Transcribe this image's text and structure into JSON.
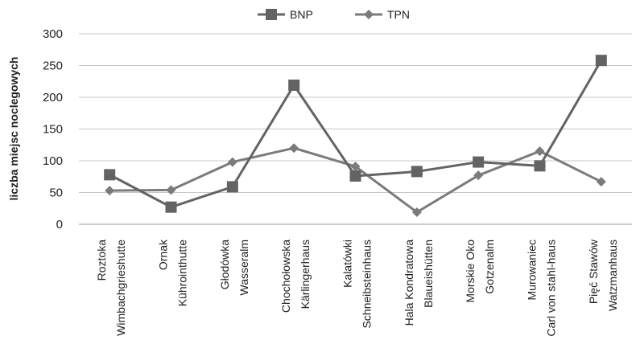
{
  "chart_data": {
    "type": "line",
    "title": "",
    "xlabel": "",
    "ylabel": "liczba miejsc noclegowych",
    "ylim": [
      0,
      300
    ],
    "yticks": [
      0,
      50,
      100,
      150,
      200,
      250,
      300
    ],
    "grid": true,
    "legend_position": "top-center",
    "categories": [
      [
        "Roztoka",
        "Wimbachgrieshutte"
      ],
      [
        "Ornak",
        "Kührointhutte"
      ],
      [
        "Głodówka",
        "Wasseralm"
      ],
      [
        "Chochołowska",
        "Kärlingerhaus"
      ],
      [
        "Kalatówki",
        "Schneibsteinhaus"
      ],
      [
        "Hala Kondratowa",
        "Blaueishütten"
      ],
      [
        "Morskie Oko",
        "Gotzenalm"
      ],
      [
        "Murowaniec",
        "Carl von stahl-haus"
      ],
      [
        "Pięć Stawów",
        "Watzmanhaus"
      ]
    ],
    "series": [
      {
        "name": "BNP",
        "marker": "square",
        "color": "#636363",
        "values": [
          78,
          27,
          59,
          219,
          76,
          83,
          98,
          92,
          258
        ]
      },
      {
        "name": "TPN",
        "marker": "diamond",
        "color": "#7b7b7b",
        "values": [
          53,
          54,
          98,
          120,
          91,
          19,
          77,
          115,
          67
        ]
      }
    ]
  }
}
